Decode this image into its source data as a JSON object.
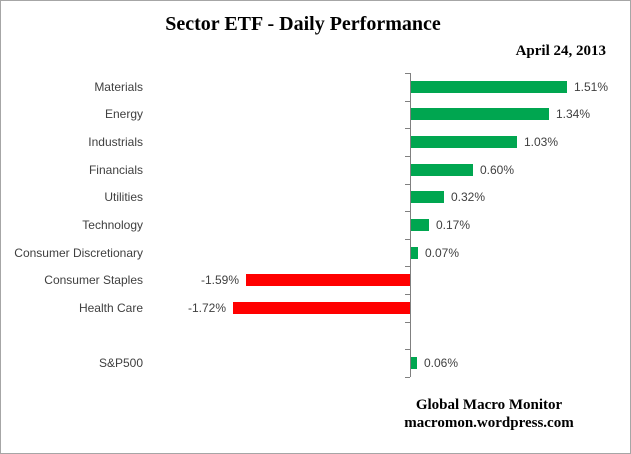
{
  "title": "Sector ETF - Daily Performance",
  "date_label": "April 24, 2013",
  "footer": {
    "line1": "Global Macro Monitor",
    "line2": "macromon.wordpress.com"
  },
  "chart_data": {
    "type": "bar",
    "orientation": "horizontal",
    "title": "Sector ETF - Daily Performance",
    "subtitle": "April 24, 2013",
    "categories": [
      "Materials",
      "Energy",
      "Industrials",
      "Financials",
      "Utilities",
      "Technology",
      "Consumer Discretionary",
      "Consumer Staples",
      "Health Care",
      "S&P500"
    ],
    "values": [
      1.51,
      1.34,
      1.03,
      0.6,
      0.32,
      0.17,
      0.07,
      -1.59,
      -1.72,
      0.06
    ],
    "value_labels": [
      "1.51%",
      "1.34%",
      "1.03%",
      "0.60%",
      "0.32%",
      "0.17%",
      "0.07%",
      "-1.59%",
      "-1.72%",
      "0.06%"
    ],
    "unit": "percent",
    "spacer_before_last": true,
    "grid": false,
    "legend": false,
    "positive_color": "#00a650",
    "negative_color": "#ff0000",
    "axis_color": "#808080",
    "label_color": "#3f3f3f"
  }
}
